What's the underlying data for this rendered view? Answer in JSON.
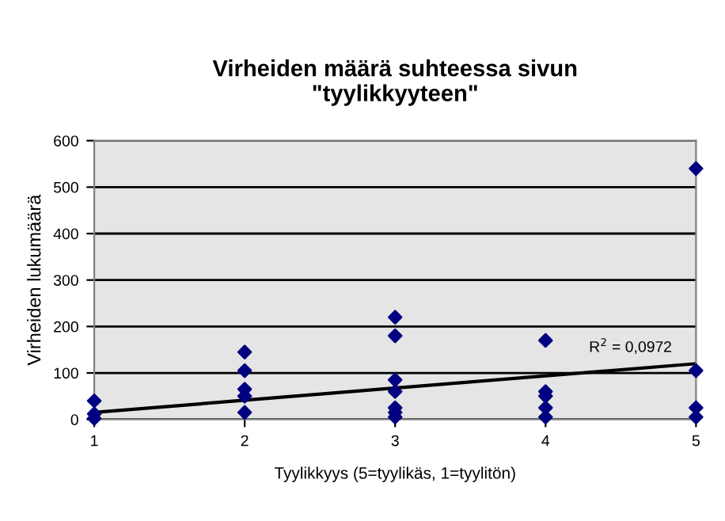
{
  "chart_data": {
    "type": "scatter",
    "title": "Virheiden määrä suhteessa sivun\n\"tyylikkyyteen\"",
    "xlabel": "Tyylikkyys (5=tyylikäs, 1=tyylitön)",
    "ylabel": "Virheiden lukumäärä",
    "series": [
      {
        "color": "#000080",
        "marker": "diamond",
        "x": [
          1,
          1,
          1,
          2,
          2,
          2,
          2,
          2,
          3,
          3,
          3,
          3,
          3,
          3,
          3,
          4,
          4,
          4,
          4,
          4,
          5,
          5,
          5,
          5
        ],
        "values": [
          40,
          12,
          2,
          145,
          105,
          65,
          50,
          15,
          220,
          180,
          85,
          60,
          25,
          15,
          5,
          170,
          60,
          50,
          25,
          5,
          540,
          105,
          25,
          5
        ]
      },
      {
        "type": "line",
        "color": "#000000",
        "x": [
          1,
          5
        ],
        "values": [
          15,
          120
        ]
      }
    ],
    "annotations": [
      "R$^{2}$ = 0,0972"
    ],
    "xlim": [
      1,
      5
    ],
    "xticks": [
      1,
      2,
      3,
      4,
      5
    ],
    "ylim": [
      0,
      600
    ],
    "yticks": [
      0,
      100,
      200,
      300,
      400,
      500,
      600
    ],
    "grid": "y",
    "legend": false
  }
}
